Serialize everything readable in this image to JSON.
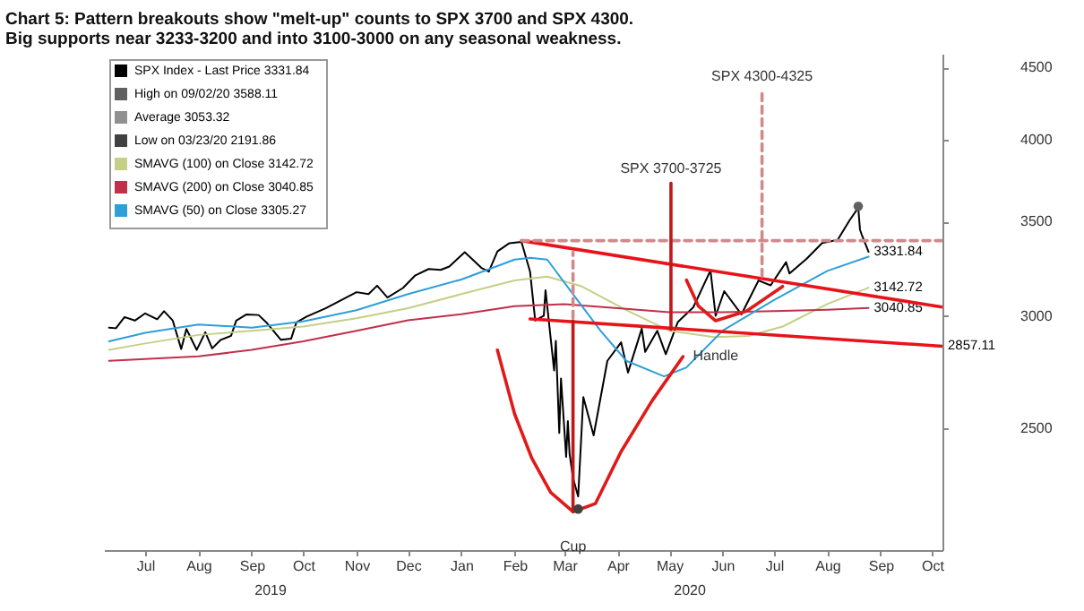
{
  "chart_data": {
    "type": "line",
    "title": "Chart 5: Pattern breakouts show \"melt-up\" counts to SPX 3700 and SPX 4300. Big supports near 3233-3200 and into 3100-3000 on any seasonal weakness.",
    "log": "y",
    "legend": "top left",
    "xlim": [
      "2019-06-21",
      "2020-10-21"
    ],
    "ylim": [
      2050,
      4600
    ],
    "yticks": [
      2500,
      3000,
      3500,
      4000,
      4500
    ],
    "xticks": [
      {
        "value": "2019-07-15",
        "label": "Jul"
      },
      {
        "value": "2019-08-15",
        "label": "Aug"
      },
      {
        "value": "2019-09-15",
        "label": "Sep"
      },
      {
        "value": "2019-10-15",
        "label": "Oct"
      },
      {
        "value": "2019-11-15",
        "label": "Nov"
      },
      {
        "value": "2019-12-15",
        "label": "Dec"
      },
      {
        "value": "2020-01-15",
        "label": "Jan"
      },
      {
        "value": "2020-02-15",
        "label": "Feb"
      },
      {
        "value": "2020-03-15",
        "label": "Mar"
      },
      {
        "value": "2020-04-15",
        "label": "Apr"
      },
      {
        "value": "2020-05-15",
        "label": "May"
      },
      {
        "value": "2020-06-15",
        "label": "Jun"
      },
      {
        "value": "2020-07-15",
        "label": "Jul"
      },
      {
        "value": "2020-08-15",
        "label": "Aug"
      },
      {
        "value": "2020-09-15",
        "label": "Sep"
      },
      {
        "value": "2020-10-15",
        "label": "Oct"
      }
    ],
    "series": [
      {
        "name": "SPX Index - Last Price  3331.84",
        "color": "#000000",
        "x": [
          "2019-06-24",
          "2019-06-28",
          "2019-07-03",
          "2019-07-09",
          "2019-07-15",
          "2019-07-22",
          "2019-07-26",
          "2019-07-31",
          "2019-08-05",
          "2019-08-08",
          "2019-08-14",
          "2019-08-19",
          "2019-08-23",
          "2019-08-28",
          "2019-09-03",
          "2019-09-06",
          "2019-09-12",
          "2019-09-19",
          "2019-09-24",
          "2019-10-02",
          "2019-10-08",
          "2019-10-11",
          "2019-10-17",
          "2019-10-28",
          "2019-11-05",
          "2019-11-15",
          "2019-11-22",
          "2019-11-27",
          "2019-12-03",
          "2019-12-12",
          "2019-12-19",
          "2019-12-27",
          "2020-01-03",
          "2020-01-08",
          "2020-01-17",
          "2020-01-27",
          "2020-01-31",
          "2020-02-05",
          "2020-02-12",
          "2020-02-19",
          "2020-02-24",
          "2020-02-27",
          "2020-03-03",
          "2020-03-04",
          "2020-03-09",
          "2020-03-10",
          "2020-03-12",
          "2020-03-13",
          "2020-03-16",
          "2020-03-17",
          "2020-03-18",
          "2020-03-20",
          "2020-03-23",
          "2020-03-26",
          "2020-04-01",
          "2020-04-09",
          "2020-04-17",
          "2020-04-21",
          "2020-04-29",
          "2020-05-01",
          "2020-05-08",
          "2020-05-13",
          "2020-05-20",
          "2020-05-29",
          "2020-06-08",
          "2020-06-11",
          "2020-06-16",
          "2020-06-26",
          "2020-07-06",
          "2020-07-13",
          "2020-07-22",
          "2020-07-24",
          "2020-08-03",
          "2020-08-12",
          "2020-08-21",
          "2020-08-28",
          "2020-09-02",
          "2020-09-03",
          "2020-09-04",
          "2020-09-08"
        ],
        "values": [
          2945,
          2942,
          2996,
          2979,
          3014,
          2985,
          3025,
          2980,
          2844,
          2938,
          2840,
          2923,
          2847,
          2887,
          2906,
          2979,
          3009,
          3006,
          2966,
          2887,
          2893,
          2970,
          2998,
          3039,
          3075,
          3120,
          3110,
          3153,
          3093,
          3141,
          3205,
          3240,
          3235,
          3253,
          3330,
          3244,
          3226,
          3334,
          3379,
          3386,
          3226,
          2979,
          3003,
          3130,
          2747,
          2882,
          2481,
          2711,
          2386,
          2529,
          2398,
          2305,
          2237,
          2630,
          2471,
          2790,
          2875,
          2737,
          2940,
          2831,
          2930,
          2820,
          2972,
          3044,
          3232,
          3002,
          3125,
          3009,
          3180,
          3155,
          3276,
          3216,
          3295,
          3380,
          3397,
          3508,
          3580,
          3455,
          3427,
          3331.84
        ],
        "value_labels": [
          null,
          null,
          null,
          null,
          null,
          null,
          null,
          null,
          null,
          null,
          null,
          null,
          null,
          null,
          null,
          null,
          null,
          null,
          null,
          null,
          null,
          null,
          null,
          null,
          null,
          null,
          null,
          null,
          null,
          null,
          null,
          null,
          null,
          null,
          null,
          null,
          null,
          null,
          null,
          null,
          null,
          null,
          null,
          null,
          null,
          null,
          null,
          null,
          null,
          null,
          null,
          null,
          null,
          null,
          null,
          null,
          null,
          null,
          null,
          null,
          null,
          null,
          null,
          null,
          null,
          null,
          null,
          null,
          null,
          null,
          null,
          null,
          null,
          null,
          null,
          null,
          null,
          null,
          null,
          "3331.84"
        ]
      },
      {
        "name": "High on 09/02/20  3588.11",
        "type": "scatter",
        "color": "#606060",
        "x": [
          "2020-09-02"
        ],
        "values": [
          3588.11
        ]
      },
      {
        "name": "Average  3053.32",
        "color": "#909090",
        "values": [
          null
        ]
      },
      {
        "name": "Low on 03/23/20  2191.86",
        "type": "scatter",
        "color": "#404040",
        "x": [
          "2020-03-23"
        ],
        "values": [
          2191.86
        ]
      },
      {
        "name": "SMAVG (100)  on Close  3142.72",
        "color": "#c6cf86",
        "x": [
          "2019-06-24",
          "2019-07-15",
          "2019-08-15",
          "2019-09-15",
          "2019-10-15",
          "2019-11-15",
          "2019-12-15",
          "2020-01-15",
          "2020-02-15",
          "2020-03-05",
          "2020-03-25",
          "2020-04-20",
          "2020-05-15",
          "2020-06-10",
          "2020-06-30",
          "2020-07-20",
          "2020-08-15",
          "2020-09-08"
        ],
        "values": [
          2840,
          2870,
          2910,
          2930,
          2950,
          2990,
          3040,
          3110,
          3180,
          3200,
          3150,
          3030,
          2930,
          2900,
          2905,
          2950,
          3060,
          3142.72
        ],
        "value_labels": [
          null,
          null,
          null,
          null,
          null,
          null,
          null,
          null,
          null,
          null,
          null,
          null,
          null,
          null,
          null,
          null,
          null,
          "3142.72"
        ]
      },
      {
        "name": "SMAVG (200)  on Close  3040.85",
        "color": "#c0304a",
        "x": [
          "2019-06-24",
          "2019-08-15",
          "2019-09-15",
          "2019-10-15",
          "2019-11-15",
          "2019-12-15",
          "2020-01-15",
          "2020-02-15",
          "2020-03-15",
          "2020-04-15",
          "2020-05-15",
          "2020-06-15",
          "2020-07-15",
          "2020-08-15",
          "2020-09-08"
        ],
        "values": [
          2790,
          2810,
          2840,
          2880,
          2930,
          2980,
          3010,
          3050,
          3060,
          3040,
          3020,
          3020,
          3025,
          3032,
          3040.85
        ],
        "value_labels": [
          null,
          null,
          null,
          null,
          null,
          null,
          null,
          null,
          null,
          null,
          null,
          null,
          null,
          null,
          "3040.85"
        ]
      },
      {
        "name": "SMAVG (50)  on Close  3305.27",
        "color": "#2e9fd8",
        "x": [
          "2019-06-24",
          "2019-07-15",
          "2019-08-15",
          "2019-09-15",
          "2019-10-15",
          "2019-11-15",
          "2019-12-15",
          "2020-01-15",
          "2020-02-15",
          "2020-02-24",
          "2020-03-05",
          "2020-03-20",
          "2020-04-05",
          "2020-04-20",
          "2020-05-12",
          "2020-05-25",
          "2020-06-15",
          "2020-07-15",
          "2020-08-15",
          "2020-09-08"
        ],
        "values": [
          2880,
          2920,
          2960,
          2945,
          2975,
          3030,
          3110,
          3185,
          3290,
          3300,
          3290,
          3110,
          2930,
          2790,
          2720,
          2760,
          2930,
          3080,
          3230,
          3305.27
        ]
      },
      {
        "color": "#e8131a",
        "x": [
          "2020-02-19",
          "2020-10-21"
        ],
        "values": [
          3393,
          3045
        ]
      },
      {
        "color": "#e8131a",
        "x": [
          "2020-02-24",
          "2020-10-21"
        ],
        "values": [
          2987,
          2857.11
        ],
        "value_labels": [
          null,
          "2857.11"
        ]
      },
      {
        "color": "#d08a8a",
        "line_style": "dashed",
        "x": [
          "2020-02-19",
          "2020-10-21"
        ],
        "values": [
          3393,
          3393
        ]
      },
      {
        "color": "#e01a1a",
        "x": [
          "2020-02-05",
          "2020-02-15",
          "2020-02-25",
          "2020-03-07",
          "2020-03-20",
          "2020-04-02",
          "2020-04-17",
          "2020-05-05",
          "2020-05-23"
        ],
        "values": [
          2839,
          2559,
          2381,
          2252,
          2182,
          2211,
          2407,
          2614,
          2809
        ]
      },
      {
        "color": "#e01a1a",
        "x": [
          "2020-05-25",
          "2020-06-01",
          "2020-06-11",
          "2020-06-29",
          "2020-07-20"
        ],
        "values": [
          3182,
          3050,
          2978,
          3025,
          3149
        ]
      },
      {
        "color": "#c01818",
        "x": [
          "2020-03-20",
          "2020-03-20"
        ],
        "values": [
          2182,
          2977
        ]
      },
      {
        "color": "#d08a8a",
        "line_style": "dashed",
        "x": [
          "2020-03-20",
          "2020-03-20"
        ],
        "values": [
          2990,
          3330
        ]
      },
      {
        "color": "#c01818",
        "x": [
          "2020-05-16",
          "2020-05-16"
        ],
        "values": [
          2936,
          3725
        ]
      },
      {
        "color": "#d08a8a",
        "line_style": "dashed",
        "x": [
          "2020-07-08",
          "2020-07-08"
        ],
        "values": [
          3201,
          4325
        ]
      }
    ],
    "annotations": [
      {
        "text": "SPX 3700-3725",
        "x": "2020-05-16",
        "y": 3725
      },
      {
        "text": "SPX 4300-4325",
        "x": "2020-07-08",
        "y": 4325
      },
      {
        "text": "Cup",
        "x": "2020-03-20",
        "y": 2182
      },
      {
        "text": "Handle",
        "x": "2020-06-11",
        "y": 2978
      },
      "2019",
      "2020"
    ]
  }
}
